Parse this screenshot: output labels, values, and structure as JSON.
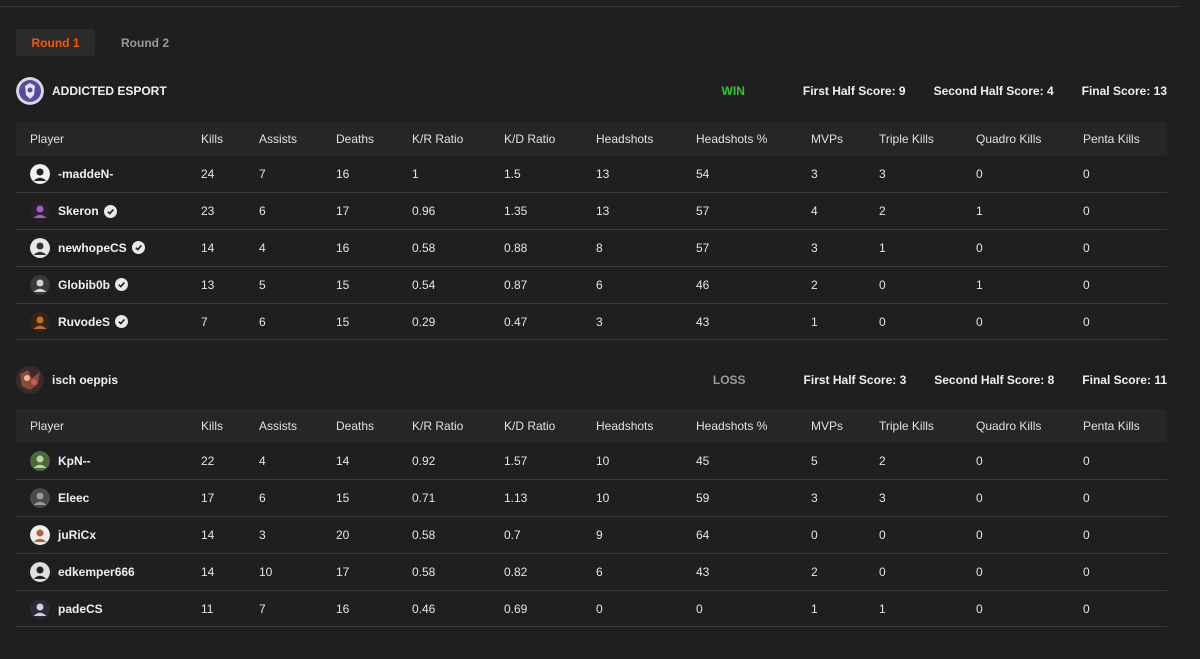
{
  "tabs": [
    {
      "label": "Round 1",
      "active": true
    },
    {
      "label": "Round 2",
      "active": false
    }
  ],
  "columns": [
    "Player",
    "Kills",
    "Assists",
    "Deaths",
    "K/R Ratio",
    "K/D Ratio",
    "Headshots",
    "Headshots %",
    "MVPs",
    "Triple Kills",
    "Quadro Kills",
    "Penta Kills"
  ],
  "teams": [
    {
      "name": "ADDICTED ESPORT",
      "result": "WIN",
      "first_half": "First Half Score: 9",
      "second_half": "Second Half Score: 4",
      "final": "Final Score: 13",
      "players": [
        {
          "name": "-maddeN-",
          "verified": false,
          "stats": [
            "24",
            "7",
            "16",
            "1",
            "1.5",
            "13",
            "54",
            "3",
            "3",
            "0",
            "0"
          ]
        },
        {
          "name": "Skeron",
          "verified": true,
          "stats": [
            "23",
            "6",
            "17",
            "0.96",
            "1.35",
            "13",
            "57",
            "4",
            "2",
            "1",
            "0"
          ]
        },
        {
          "name": "newhopeCS",
          "verified": true,
          "stats": [
            "14",
            "4",
            "16",
            "0.58",
            "0.88",
            "8",
            "57",
            "3",
            "1",
            "0",
            "0"
          ]
        },
        {
          "name": "Globib0b",
          "verified": true,
          "stats": [
            "13",
            "5",
            "15",
            "0.54",
            "0.87",
            "6",
            "46",
            "2",
            "0",
            "1",
            "0"
          ]
        },
        {
          "name": "RuvodeS",
          "verified": true,
          "stats": [
            "7",
            "6",
            "15",
            "0.29",
            "0.47",
            "3",
            "43",
            "1",
            "0",
            "0",
            "0"
          ]
        }
      ]
    },
    {
      "name": "isch oeppis",
      "result": "LOSS",
      "first_half": "First Half Score: 3",
      "second_half": "Second Half Score: 8",
      "final": "Final Score: 11",
      "players": [
        {
          "name": "KpN--",
          "verified": false,
          "stats": [
            "22",
            "4",
            "14",
            "0.92",
            "1.57",
            "10",
            "45",
            "5",
            "2",
            "0",
            "0"
          ]
        },
        {
          "name": "Eleec",
          "verified": false,
          "stats": [
            "17",
            "6",
            "15",
            "0.71",
            "1.13",
            "10",
            "59",
            "3",
            "3",
            "0",
            "0"
          ]
        },
        {
          "name": "juRiCx",
          "verified": false,
          "stats": [
            "14",
            "3",
            "20",
            "0.58",
            "0.7",
            "9",
            "64",
            "0",
            "0",
            "0",
            "0"
          ]
        },
        {
          "name": "edkemper666",
          "verified": false,
          "stats": [
            "14",
            "10",
            "17",
            "0.58",
            "0.82",
            "6",
            "43",
            "2",
            "0",
            "0",
            "0"
          ]
        },
        {
          "name": "padeCS",
          "verified": false,
          "stats": [
            "11",
            "7",
            "16",
            "0.46",
            "0.69",
            "0",
            "0",
            "1",
            "1",
            "0",
            "0"
          ]
        }
      ]
    }
  ],
  "colors": {
    "accent": "#ff5500",
    "win": "#32c832",
    "loss": "#9a9a9a",
    "background": "#1f1f1f"
  }
}
